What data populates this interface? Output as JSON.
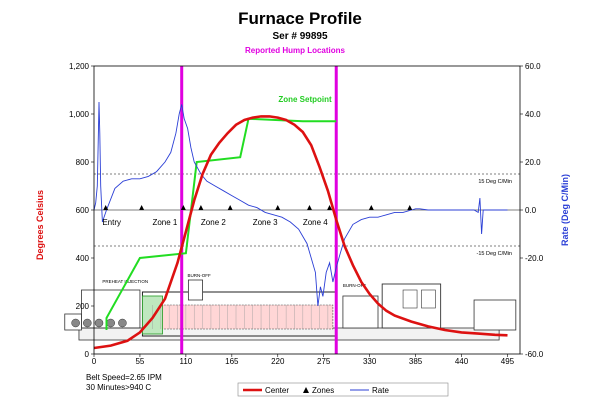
{
  "chart_data": {
    "type": "line",
    "title": "Furnace Profile",
    "subtitle": "Ser # 99895",
    "hump_label": "Reported Hump Locations",
    "ylabel_left": "Degrees Celsius",
    "ylabel_right": "Rate (Deg C/Min)",
    "y_left_ticks": [
      "0",
      "200",
      "400",
      "600",
      "800",
      "1,000",
      "1,200"
    ],
    "y_right_ticks": [
      "-60.0",
      "-20.0",
      "0.0",
      "20.0",
      "40.0",
      "60.0"
    ],
    "x_ticks": [
      "0",
      "55",
      "110",
      "165",
      "220",
      "275",
      "330",
      "385",
      "440",
      "495"
    ],
    "ylim_left": [
      0,
      1200
    ],
    "ylim_right": [
      -60,
      60
    ],
    "xlim": [
      0,
      510
    ],
    "hump_locations": [
      105,
      290
    ],
    "rate_reference_lines": [
      {
        "value": 15,
        "label": "15 Deg C/Min"
      },
      {
        "value": -15,
        "label": "-15 Deg C/Min"
      }
    ],
    "zone_labels": [
      {
        "text": "Entry",
        "x": 10
      },
      {
        "text": "Zone 1",
        "x": 70
      },
      {
        "text": "Zone 2",
        "x": 128
      },
      {
        "text": "Zone 3",
        "x": 190
      },
      {
        "text": "Zone 4",
        "x": 250
      }
    ],
    "zone_markers_x": [
      14,
      57,
      107,
      128,
      163,
      220,
      258,
      282,
      332,
      378
    ],
    "setpoint_label": "Zone Setpoint",
    "setpoint_steps": [
      [
        15,
        100
      ],
      [
        15,
        100
      ],
      [
        15,
        150
      ],
      [
        15,
        150
      ],
      [
        55,
        400
      ],
      [
        55,
        400
      ],
      [
        110,
        420
      ],
      [
        110,
        420
      ],
      [
        123,
        800
      ],
      [
        123,
        800
      ],
      [
        175,
        820
      ],
      [
        175,
        820
      ],
      [
        185,
        980
      ],
      [
        185,
        980
      ],
      [
        250,
        970
      ],
      [
        250,
        970
      ],
      [
        290,
        970
      ]
    ],
    "series": [
      {
        "name": "Center",
        "color": "#dd1111",
        "axis": "left",
        "points": [
          [
            0,
            25
          ],
          [
            20,
            35
          ],
          [
            40,
            55
          ],
          [
            55,
            90
          ],
          [
            70,
            150
          ],
          [
            85,
            230
          ],
          [
            100,
            380
          ],
          [
            110,
            510
          ],
          [
            120,
            640
          ],
          [
            130,
            750
          ],
          [
            140,
            830
          ],
          [
            150,
            880
          ],
          [
            160,
            920
          ],
          [
            170,
            955
          ],
          [
            180,
            975
          ],
          [
            190,
            985
          ],
          [
            200,
            990
          ],
          [
            210,
            990
          ],
          [
            220,
            985
          ],
          [
            230,
            975
          ],
          [
            240,
            955
          ],
          [
            250,
            925
          ],
          [
            260,
            870
          ],
          [
            270,
            780
          ],
          [
            280,
            680
          ],
          [
            290,
            560
          ],
          [
            300,
            450
          ],
          [
            310,
            370
          ],
          [
            320,
            300
          ],
          [
            330,
            250
          ],
          [
            340,
            210
          ],
          [
            350,
            180
          ],
          [
            360,
            160
          ],
          [
            380,
            135
          ],
          [
            400,
            115
          ],
          [
            420,
            100
          ],
          [
            440,
            90
          ],
          [
            460,
            85
          ],
          [
            480,
            80
          ],
          [
            495,
            78
          ]
        ]
      },
      {
        "name": "Rate",
        "color": "#2b3fd6",
        "axis": "right",
        "points": [
          [
            0,
            0
          ],
          [
            2,
            3
          ],
          [
            4,
            10
          ],
          [
            5,
            28
          ],
          [
            6,
            45
          ],
          [
            7,
            32
          ],
          [
            8,
            10
          ],
          [
            10,
            -5
          ],
          [
            15,
            0
          ],
          [
            25,
            9
          ],
          [
            35,
            12
          ],
          [
            45,
            13
          ],
          [
            55,
            13
          ],
          [
            65,
            14
          ],
          [
            75,
            16
          ],
          [
            85,
            20
          ],
          [
            92,
            24
          ],
          [
            98,
            32
          ],
          [
            102,
            40
          ],
          [
            105,
            44
          ],
          [
            108,
            38
          ],
          [
            112,
            34
          ],
          [
            116,
            26
          ],
          [
            120,
            20
          ],
          [
            128,
            15
          ],
          [
            135,
            12
          ],
          [
            145,
            10
          ],
          [
            155,
            8
          ],
          [
            165,
            6
          ],
          [
            175,
            4
          ],
          [
            185,
            2
          ],
          [
            195,
            1
          ],
          [
            205,
            -1
          ],
          [
            215,
            -2
          ],
          [
            225,
            -3
          ],
          [
            235,
            -5
          ],
          [
            245,
            -8
          ],
          [
            255,
            -14
          ],
          [
            260,
            -20
          ],
          [
            265,
            -26
          ],
          [
            268,
            -40
          ],
          [
            271,
            -32
          ],
          [
            274,
            -36
          ],
          [
            278,
            -26
          ],
          [
            282,
            -22
          ],
          [
            286,
            -30
          ],
          [
            290,
            -24
          ],
          [
            294,
            -19
          ],
          [
            300,
            -12
          ],
          [
            310,
            -6
          ],
          [
            320,
            -4
          ],
          [
            330,
            -3
          ],
          [
            340,
            -3
          ],
          [
            350,
            -2
          ],
          [
            360,
            -1
          ],
          [
            370,
            -1
          ],
          [
            380,
            0
          ],
          [
            385,
            0.5
          ],
          [
            390,
            0.5
          ],
          [
            400,
            0
          ],
          [
            420,
            0
          ],
          [
            440,
            0
          ],
          [
            455,
            0
          ],
          [
            460,
            -1
          ],
          [
            462,
            5
          ],
          [
            464,
            -10
          ],
          [
            466,
            0
          ],
          [
            470,
            0
          ],
          [
            480,
            0
          ],
          [
            495,
            0
          ]
        ]
      }
    ],
    "legend": {
      "center": "Center",
      "zones": "Zones",
      "rate": "Rate"
    },
    "footer_lines": [
      "Belt Speed=2.65 IPM",
      "30 Minutes>940 C"
    ],
    "furnace_labels": [
      "PREHEAT INJECTION",
      "BURN-OFF",
      "BURN-OFF"
    ]
  }
}
